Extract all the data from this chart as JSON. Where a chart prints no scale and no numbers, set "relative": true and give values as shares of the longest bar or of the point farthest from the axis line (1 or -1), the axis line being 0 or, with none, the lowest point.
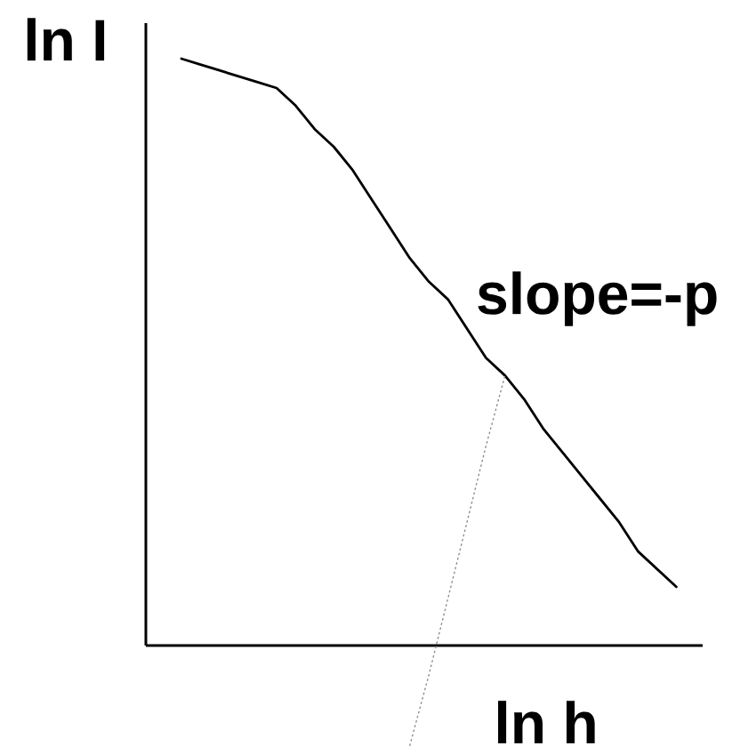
{
  "chart_data": {
    "type": "line",
    "relative": true,
    "xlabel": "ln h",
    "ylabel": "ln I",
    "annotations": [
      "slope=-p"
    ],
    "categories": [
      null,
      null,
      null,
      null,
      null,
      null,
      null,
      null,
      null,
      null,
      null,
      null,
      null,
      null,
      null,
      null,
      null,
      null,
      null,
      null,
      null,
      null,
      null,
      null,
      null,
      null,
      null
    ],
    "line_style": "solid",
    "series": [
      {
        "color": "#000000",
        "values": [
          1.0,
          0.99,
          0.98,
          0.97,
          0.96,
          0.95,
          0.92,
          0.88,
          0.85,
          0.81,
          0.76,
          0.71,
          0.66,
          0.62,
          0.59,
          0.54,
          0.49,
          0.46,
          0.42,
          0.37,
          0.33,
          0.29,
          0.25,
          0.21,
          0.16,
          0.13,
          0.1
        ]
      },
      {
        "color": "#8c8c8c",
        "line_style": "dotted",
        "values": [
          null,
          null,
          null,
          null,
          null,
          null,
          null,
          null,
          null,
          null,
          null,
          null,
          -0.17,
          -0.05,
          0.08,
          0.21,
          0.34,
          0.46,
          null,
          null,
          null,
          null,
          null,
          null,
          null,
          null,
          null
        ]
      }
    ]
  }
}
